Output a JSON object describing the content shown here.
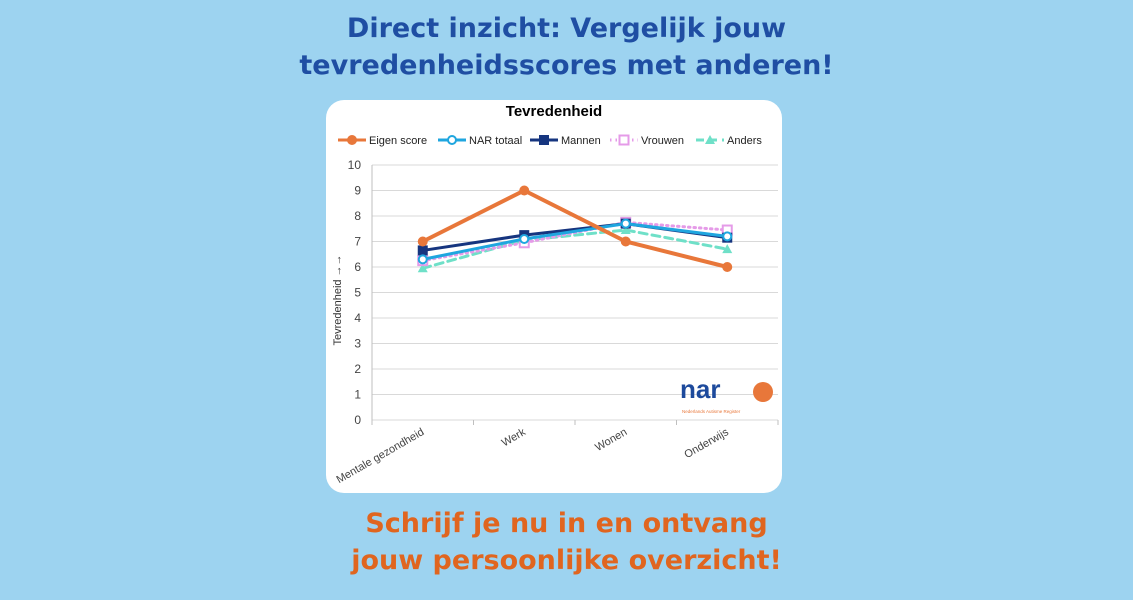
{
  "headline_top": [
    "Direct inzicht: Vergelijk jouw",
    "tevredenheidsscores met anderen!"
  ],
  "headline_bottom": [
    "Schrijf je nu in en ontvang",
    "jouw persoonlijke overzicht!"
  ],
  "logo": {
    "text": "nar",
    "subtitle": "Nederlands Autisme Register"
  },
  "chart_data": {
    "type": "line",
    "title": "Tevredenheid",
    "xlabel": "",
    "ylabel": "Tevredenheid →→",
    "ylim": [
      0,
      10
    ],
    "yticks": [
      "0",
      "1",
      "2",
      "3",
      "4",
      "5",
      "6",
      "7",
      "8",
      "9",
      "10"
    ],
    "grid": true,
    "legend_position": "top",
    "categories": [
      "Mentale gezondheid",
      "Werk",
      "Wonen",
      "Onderwijs"
    ],
    "series": [
      {
        "name": "Eigen score",
        "values": [
          7,
          9,
          7,
          6
        ],
        "color": "#e8773a",
        "marker": "circle",
        "dash": "solid"
      },
      {
        "name": "NAR totaal",
        "values": [
          6.3,
          7.1,
          7.7,
          7.2
        ],
        "color": "#1fa6df",
        "marker": "open-circle",
        "dash": "solid"
      },
      {
        "name": "Mannen",
        "values": [
          6.65,
          7.25,
          7.7,
          7.15
        ],
        "color": "#16357f",
        "marker": "square",
        "dash": "solid"
      },
      {
        "name": "Vrouwen",
        "values": [
          6.25,
          6.95,
          7.75,
          7.45
        ],
        "color": "#e59be8",
        "marker": "open-square",
        "dash": "dotted"
      },
      {
        "name": "Anders",
        "values": [
          5.95,
          7.05,
          7.45,
          6.7
        ],
        "color": "#6fe0c8",
        "marker": "triangle",
        "dash": "dashed"
      }
    ]
  }
}
